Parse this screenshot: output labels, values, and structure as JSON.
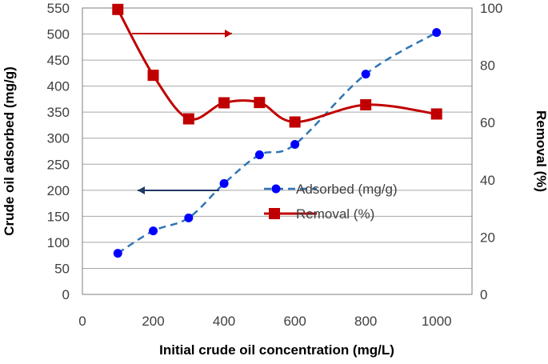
{
  "chart_data": {
    "type": "line",
    "xlabel": "Initial crude oil concentration (mg/L)",
    "ylabel": "Crude oil adsorbed (mg/g)",
    "y2label": "Removal (%)",
    "xlim": [
      0,
      1100
    ],
    "ylim": [
      0,
      550
    ],
    "y2lim": [
      0,
      100
    ],
    "xticks": [
      "0",
      "200",
      "400",
      "600",
      "800",
      "1000"
    ],
    "yticks": [
      "0",
      "50",
      "100",
      "150",
      "200",
      "250",
      "300",
      "350",
      "400",
      "450",
      "500",
      "550"
    ],
    "y2ticks": [
      "0",
      "20",
      "40",
      "60",
      "80",
      "100"
    ],
    "grid": "horizontal",
    "legend_position": "center-right",
    "series": [
      {
        "name": "Adsorbed (mg/g)",
        "axis": "left",
        "color": "#2e75b6",
        "line_style": "dashed",
        "marker": "circle",
        "x": [
          100,
          200,
          300,
          400,
          500,
          600,
          800,
          1000
        ],
        "y": [
          79,
          122,
          147,
          213,
          268,
          288,
          423,
          503
        ]
      },
      {
        "name": "Removal (%)",
        "axis": "right",
        "color": "#c00000",
        "line_style": "solid",
        "marker": "square",
        "x": [
          100,
          200,
          300,
          400,
          500,
          600,
          800,
          1000
        ],
        "y": [
          99.5,
          76.5,
          61.3,
          66.9,
          67,
          60.2,
          66.2,
          63
        ]
      }
    ],
    "annotations": [
      {
        "type": "arrow",
        "direction": "right",
        "points_to": "right-axis",
        "color": "#c00000"
      },
      {
        "type": "arrow",
        "direction": "left",
        "points_to": "left-axis",
        "color": "#1f3864"
      }
    ]
  }
}
